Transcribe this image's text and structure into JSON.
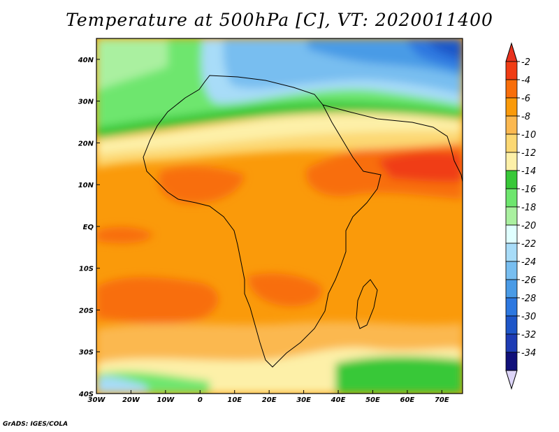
{
  "title": "Temperature at 500hPa [C], VT: 2020011400",
  "footer": "GrADS: IGES/COLA",
  "map": {
    "lon_range": [
      -30,
      76
    ],
    "lat_range": [
      -40,
      45
    ],
    "lon_ticks": [
      {
        "value": -30,
        "label": "30W"
      },
      {
        "value": -20,
        "label": "20W"
      },
      {
        "value": -10,
        "label": "10W"
      },
      {
        "value": 0,
        "label": "0"
      },
      {
        "value": 10,
        "label": "10E"
      },
      {
        "value": 20,
        "label": "20E"
      },
      {
        "value": 30,
        "label": "30E"
      },
      {
        "value": 40,
        "label": "40E"
      },
      {
        "value": 50,
        "label": "50E"
      },
      {
        "value": 60,
        "label": "60E"
      },
      {
        "value": 70,
        "label": "70E"
      }
    ],
    "lat_ticks": [
      {
        "value": 40,
        "label": "40N"
      },
      {
        "value": 30,
        "label": "30N"
      },
      {
        "value": 20,
        "label": "20N"
      },
      {
        "value": 10,
        "label": "10N"
      },
      {
        "value": 0,
        "label": "EQ"
      },
      {
        "value": -10,
        "label": "10S"
      },
      {
        "value": -20,
        "label": "20S"
      },
      {
        "value": -30,
        "label": "30S"
      },
      {
        "value": -40,
        "label": "40S"
      }
    ]
  },
  "colorbar": {
    "levels": [
      "-2",
      "-4",
      "-6",
      "-8",
      "-10",
      "-12",
      "-14",
      "-16",
      "-18",
      "-20",
      "-22",
      "-24",
      "-26",
      "-28",
      "-30",
      "-32",
      "-34"
    ],
    "colors": [
      "#f03c14",
      "#f86e0a",
      "#fa9a0a",
      "#fbb850",
      "#fcd873",
      "#fdf0a8",
      "#38c838",
      "#6ee66e",
      "#aaf0a0",
      "#e0ffff",
      "#a8dcf8",
      "#78bef0",
      "#4a9be6",
      "#2d78e0",
      "#1e56c8",
      "#1e3cb4",
      "#10107a"
    ],
    "top_arrow_color": "#e8321e",
    "bottom_arrow_color": "#ddd5f8"
  }
}
